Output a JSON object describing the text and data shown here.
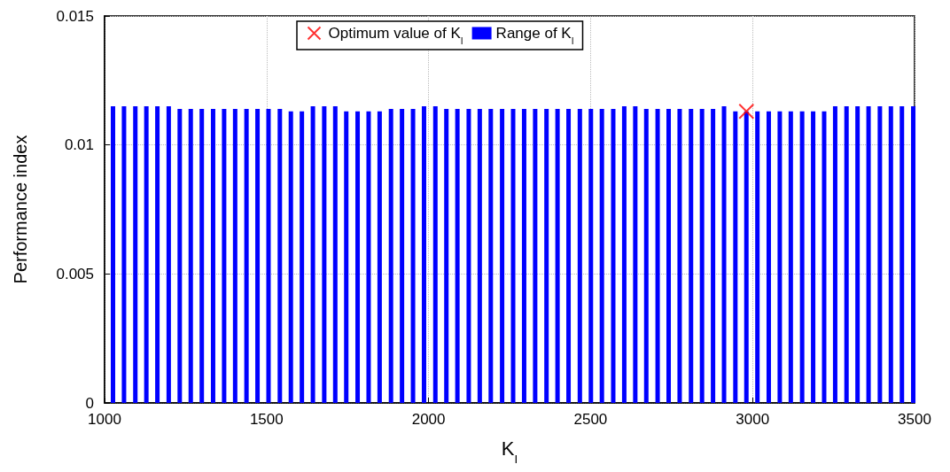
{
  "chart_data": {
    "type": "bar",
    "xlabel": "K$_{I}$",
    "ylabel": "Performance index",
    "xlim": [
      1000,
      3500
    ],
    "xticks": [
      1000,
      1500,
      2000,
      2500,
      3000,
      3500
    ],
    "ylim": [
      0,
      0.015
    ],
    "yticks": [
      0,
      0.005,
      0.01,
      0.015
    ],
    "grid": true,
    "legend": "top",
    "series": [
      {
        "name": "Optimum value of K$_{I}$",
        "type": "scatter",
        "color": "#ff0000",
        "marker": "cross",
        "x": [
          2981
        ],
        "values": [
          0.0113
        ]
      },
      {
        "name": "Range of K$_{I}$",
        "color": "#0000ff",
        "x": [
          1026,
          1060,
          1095,
          1129,
          1163,
          1198,
          1232,
          1266,
          1300,
          1335,
          1369,
          1403,
          1438,
          1472,
          1506,
          1541,
          1575,
          1609,
          1643,
          1678,
          1712,
          1746,
          1781,
          1815,
          1849,
          1884,
          1918,
          1952,
          1986,
          2021,
          2055,
          2089,
          2124,
          2158,
          2192,
          2227,
          2261,
          2295,
          2329,
          2364,
          2398,
          2432,
          2467,
          2501,
          2535,
          2570,
          2604,
          2638,
          2672,
          2707,
          2741,
          2775,
          2810,
          2844,
          2878,
          2912,
          2947,
          2981,
          3015,
          3050,
          3084,
          3118,
          3153,
          3187,
          3221,
          3255,
          3290,
          3324,
          3358,
          3393,
          3427,
          3461,
          3496
        ],
        "values": [
          0.0115,
          0.0115,
          0.0115,
          0.0115,
          0.0115,
          0.0115,
          0.0114,
          0.0114,
          0.0114,
          0.0114,
          0.0114,
          0.0114,
          0.0114,
          0.0114,
          0.0114,
          0.0114,
          0.0113,
          0.0113,
          0.0115,
          0.0115,
          0.0115,
          0.0113,
          0.0113,
          0.0113,
          0.0113,
          0.0114,
          0.0114,
          0.0114,
          0.0115,
          0.0115,
          0.0114,
          0.0114,
          0.0114,
          0.0114,
          0.0114,
          0.0114,
          0.0114,
          0.0114,
          0.0114,
          0.0114,
          0.0114,
          0.0114,
          0.0114,
          0.0114,
          0.0114,
          0.0114,
          0.0115,
          0.0115,
          0.0114,
          0.0114,
          0.0114,
          0.0114,
          0.0114,
          0.0114,
          0.0114,
          0.0115,
          0.0113,
          0.0113,
          0.0113,
          0.0113,
          0.0113,
          0.0113,
          0.0113,
          0.0113,
          0.0113,
          0.0115,
          0.0115,
          0.0115,
          0.0115,
          0.0115,
          0.0115,
          0.0115,
          0.0115
        ]
      }
    ]
  }
}
